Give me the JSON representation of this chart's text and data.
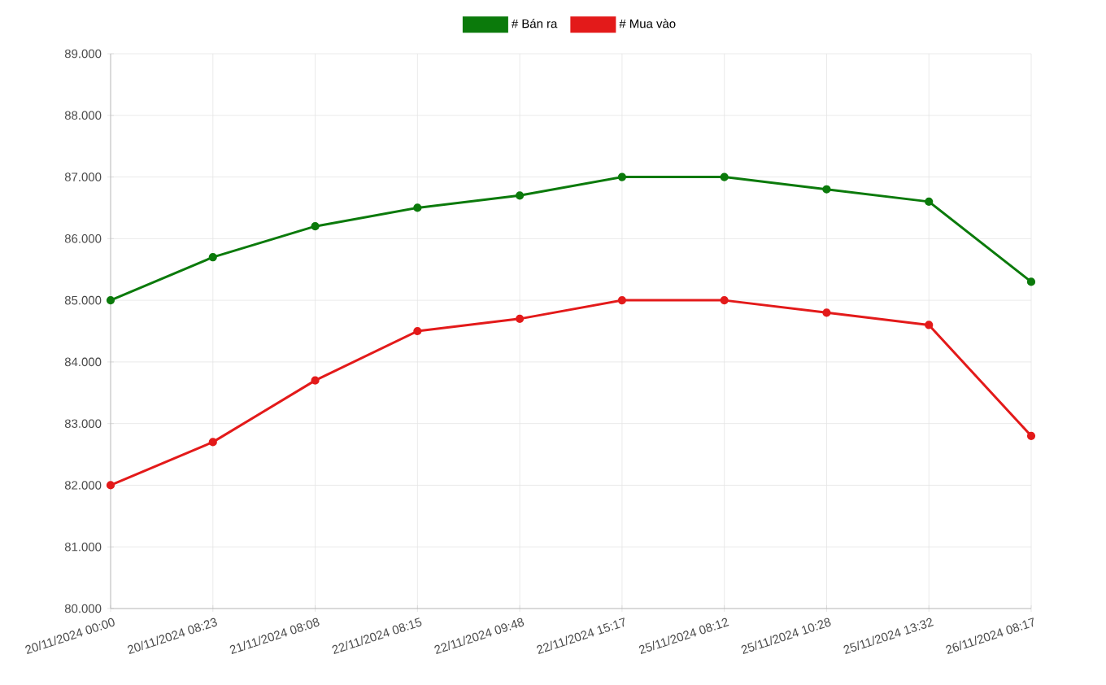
{
  "chart_data": {
    "type": "line",
    "categories": [
      "20/11/2024 00:00",
      "20/11/2024 08:23",
      "21/11/2024 08:08",
      "22/11/2024 08:15",
      "22/11/2024 09:48",
      "22/11/2024 15:17",
      "25/11/2024 08:12",
      "25/11/2024 10:28",
      "25/11/2024 13:32",
      "26/11/2024 08:17"
    ],
    "series": [
      {
        "name": "# Bán ra",
        "color": "#0b7a0b",
        "values": [
          85000,
          85700,
          86200,
          86500,
          86700,
          87000,
          87000,
          86800,
          86600,
          85300
        ]
      },
      {
        "name": "# Mua vào",
        "color": "#e31a1a",
        "values": [
          82000,
          82700,
          83700,
          84500,
          84700,
          85000,
          85000,
          84800,
          84600,
          82800
        ]
      }
    ],
    "ylim": [
      80000,
      89000
    ],
    "yticks": [
      {
        "value": 80000,
        "label": "80.000"
      },
      {
        "value": 81000,
        "label": "81.000"
      },
      {
        "value": 82000,
        "label": "82.000"
      },
      {
        "value": 83000,
        "label": "83.000"
      },
      {
        "value": 84000,
        "label": "84.000"
      },
      {
        "value": 85000,
        "label": "85.000"
      },
      {
        "value": 86000,
        "label": "86.000"
      },
      {
        "value": 87000,
        "label": "87.000"
      },
      {
        "value": 88000,
        "label": "88.000"
      },
      {
        "value": 89000,
        "label": "89.000"
      }
    ],
    "grid": true,
    "legend": "top",
    "marker": "circle",
    "line_style": "solid"
  }
}
